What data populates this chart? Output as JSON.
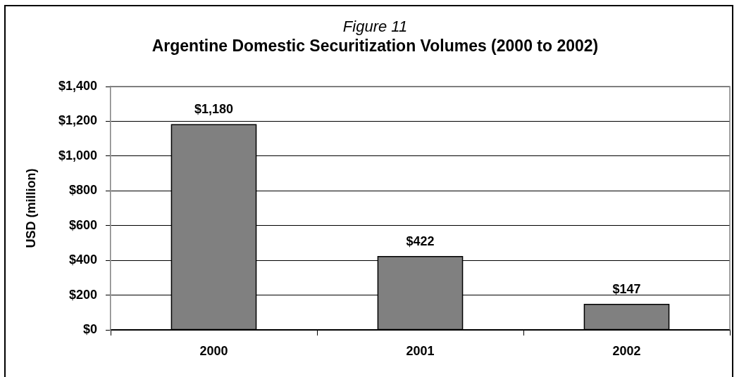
{
  "chart_data": {
    "type": "bar",
    "title": "Argentine Domestic Securitization Volumes (2000 to 2002)",
    "annotations": [
      "Figure 11"
    ],
    "ylabel": "USD (million)",
    "categories": [
      "2000",
      "2001",
      "2002"
    ],
    "values": [
      1180,
      422,
      147
    ],
    "value_labels": [
      "$1,180",
      "$422",
      "$147"
    ],
    "color": "#808080",
    "ylim": [
      0,
      1400
    ],
    "yticks": [
      {
        "value": 0,
        "label": "$0"
      },
      {
        "value": 200,
        "label": "$200"
      },
      {
        "value": 400,
        "label": "$400"
      },
      {
        "value": 600,
        "label": "$600"
      },
      {
        "value": 800,
        "label": "$800"
      },
      {
        "value": 1000,
        "label": "$1,000"
      },
      {
        "value": 1200,
        "label": "$1,200"
      },
      {
        "value": 1400,
        "label": "$1,400"
      }
    ],
    "grid": "y"
  }
}
